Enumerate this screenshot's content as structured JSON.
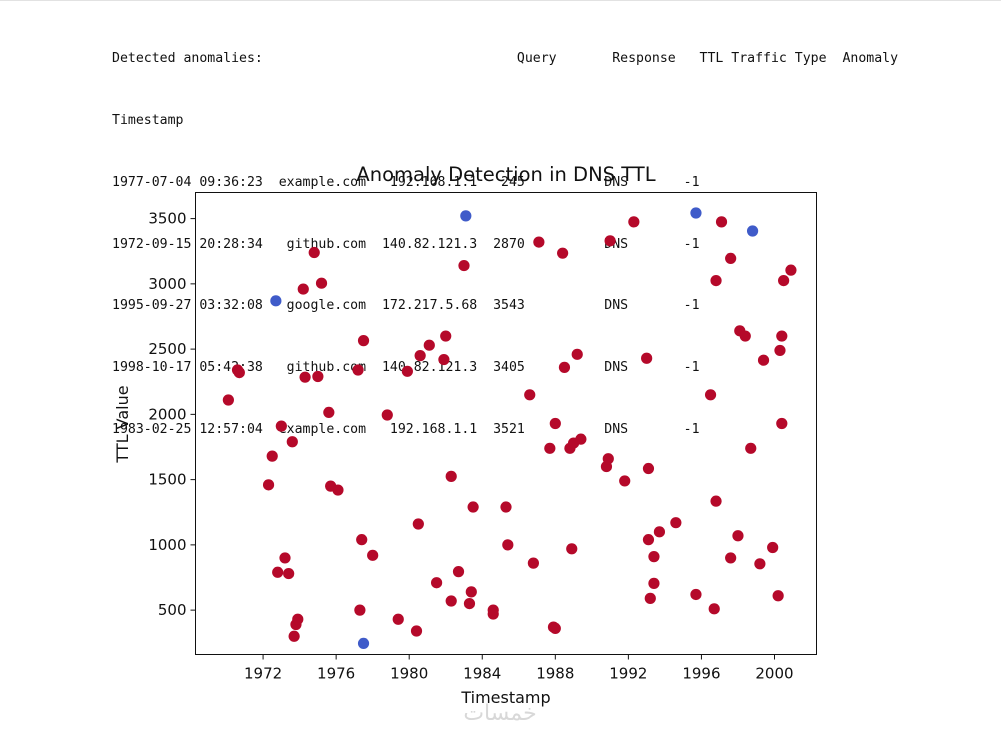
{
  "output": {
    "lines": [
      "Detected anomalies:                                Query       Response   TTL Traffic Type  Anomaly",
      "Timestamp",
      "1977-07-04 09:36:23  example.com   192.168.1.1   245          DNS       -1",
      "1972-09-15 20:28:34   github.com  140.82.121.3  2870          DNS       -1",
      "1995-09-27 03:32:08   google.com  172.217.5.68  3543          DNS       -1",
      "1998-10-17 05:42:38   github.com  140.82.121.3  3405          DNS       -1",
      "1983-02-25 12:57:04  example.com   192.168.1.1  3521          DNS       -1"
    ]
  },
  "watermark": "خمسات",
  "chart_data": {
    "type": "scatter",
    "title": "Anomaly Detection in DNS TTL",
    "xlabel": "Timestamp",
    "ylabel": "TTL Value",
    "xlim": [
      1968.3,
      2002.3
    ],
    "ylim": [
      160,
      3700
    ],
    "xticks": [
      1972,
      1976,
      1980,
      1984,
      1988,
      1992,
      1996,
      2000
    ],
    "yticks": [
      500,
      1000,
      1500,
      2000,
      2500,
      3000,
      3500
    ],
    "grid": false,
    "colors": {
      "normal": "#b5092a",
      "anomaly": "#3f5bc9"
    },
    "anomaly_points": [
      [
        1977.5,
        245
      ],
      [
        1972.7,
        2870
      ],
      [
        1995.7,
        3543
      ],
      [
        1998.8,
        3405
      ],
      [
        1983.1,
        3521
      ]
    ],
    "normal_points": [
      [
        1970.1,
        2110
      ],
      [
        1970.6,
        2340
      ],
      [
        1970.7,
        2320
      ],
      [
        1972.3,
        1460
      ],
      [
        1972.5,
        1680
      ],
      [
        1972.8,
        790
      ],
      [
        1973.0,
        1910
      ],
      [
        1973.2,
        900
      ],
      [
        1973.4,
        780
      ],
      [
        1973.6,
        1790
      ],
      [
        1973.7,
        300
      ],
      [
        1973.8,
        390
      ],
      [
        1973.9,
        430
      ],
      [
        1974.2,
        2960
      ],
      [
        1974.3,
        2285
      ],
      [
        1974.8,
        3240
      ],
      [
        1975.0,
        2290
      ],
      [
        1975.2,
        3005
      ],
      [
        1975.6,
        2015
      ],
      [
        1975.7,
        1450
      ],
      [
        1976.1,
        1420
      ],
      [
        1977.2,
        2340
      ],
      [
        1977.3,
        500
      ],
      [
        1977.4,
        1040
      ],
      [
        1977.5,
        2565
      ],
      [
        1978.0,
        920
      ],
      [
        1978.8,
        1995
      ],
      [
        1979.4,
        430
      ],
      [
        1979.9,
        2330
      ],
      [
        1980.4,
        340
      ],
      [
        1980.5,
        1160
      ],
      [
        1980.6,
        2450
      ],
      [
        1981.1,
        2530
      ],
      [
        1981.5,
        710
      ],
      [
        1981.9,
        2420
      ],
      [
        1982.0,
        2600
      ],
      [
        1982.3,
        570
      ],
      [
        1982.3,
        1525
      ],
      [
        1982.7,
        795
      ],
      [
        1983.0,
        3140
      ],
      [
        1983.3,
        550
      ],
      [
        1983.4,
        640
      ],
      [
        1983.5,
        1290
      ],
      [
        1984.6,
        500
      ],
      [
        1984.6,
        470
      ],
      [
        1985.3,
        1290
      ],
      [
        1985.4,
        1000
      ],
      [
        1986.6,
        2150
      ],
      [
        1986.8,
        860
      ],
      [
        1987.1,
        3320
      ],
      [
        1987.7,
        1740
      ],
      [
        1987.9,
        370
      ],
      [
        1988.0,
        360
      ],
      [
        1988.0,
        1930
      ],
      [
        1988.4,
        3235
      ],
      [
        1988.5,
        2360
      ],
      [
        1988.8,
        1740
      ],
      [
        1988.9,
        970
      ],
      [
        1989.0,
        1780
      ],
      [
        1989.2,
        2460
      ],
      [
        1989.4,
        1810
      ],
      [
        1990.8,
        1600
      ],
      [
        1990.9,
        1660
      ],
      [
        1991.0,
        3330
      ],
      [
        1991.8,
        1490
      ],
      [
        1992.3,
        3475
      ],
      [
        1993.0,
        2430
      ],
      [
        1993.1,
        1040
      ],
      [
        1993.1,
        1585
      ],
      [
        1993.2,
        590
      ],
      [
        1993.4,
        910
      ],
      [
        1993.4,
        705
      ],
      [
        1993.7,
        1100
      ],
      [
        1994.6,
        1170
      ],
      [
        1995.7,
        620
      ],
      [
        1996.5,
        2150
      ],
      [
        1996.7,
        510
      ],
      [
        1996.8,
        1335
      ],
      [
        1996.8,
        3025
      ],
      [
        1997.1,
        3475
      ],
      [
        1997.6,
        900
      ],
      [
        1997.6,
        3195
      ],
      [
        1998.0,
        1070
      ],
      [
        1998.1,
        2640
      ],
      [
        1998.4,
        2600
      ],
      [
        1998.7,
        1740
      ],
      [
        1999.2,
        855
      ],
      [
        1999.4,
        2415
      ],
      [
        1999.9,
        980
      ],
      [
        2000.2,
        610
      ],
      [
        2000.3,
        2490
      ],
      [
        2000.4,
        2600
      ],
      [
        2000.4,
        1930
      ],
      [
        2000.5,
        3025
      ],
      [
        2000.9,
        3105
      ]
    ]
  }
}
